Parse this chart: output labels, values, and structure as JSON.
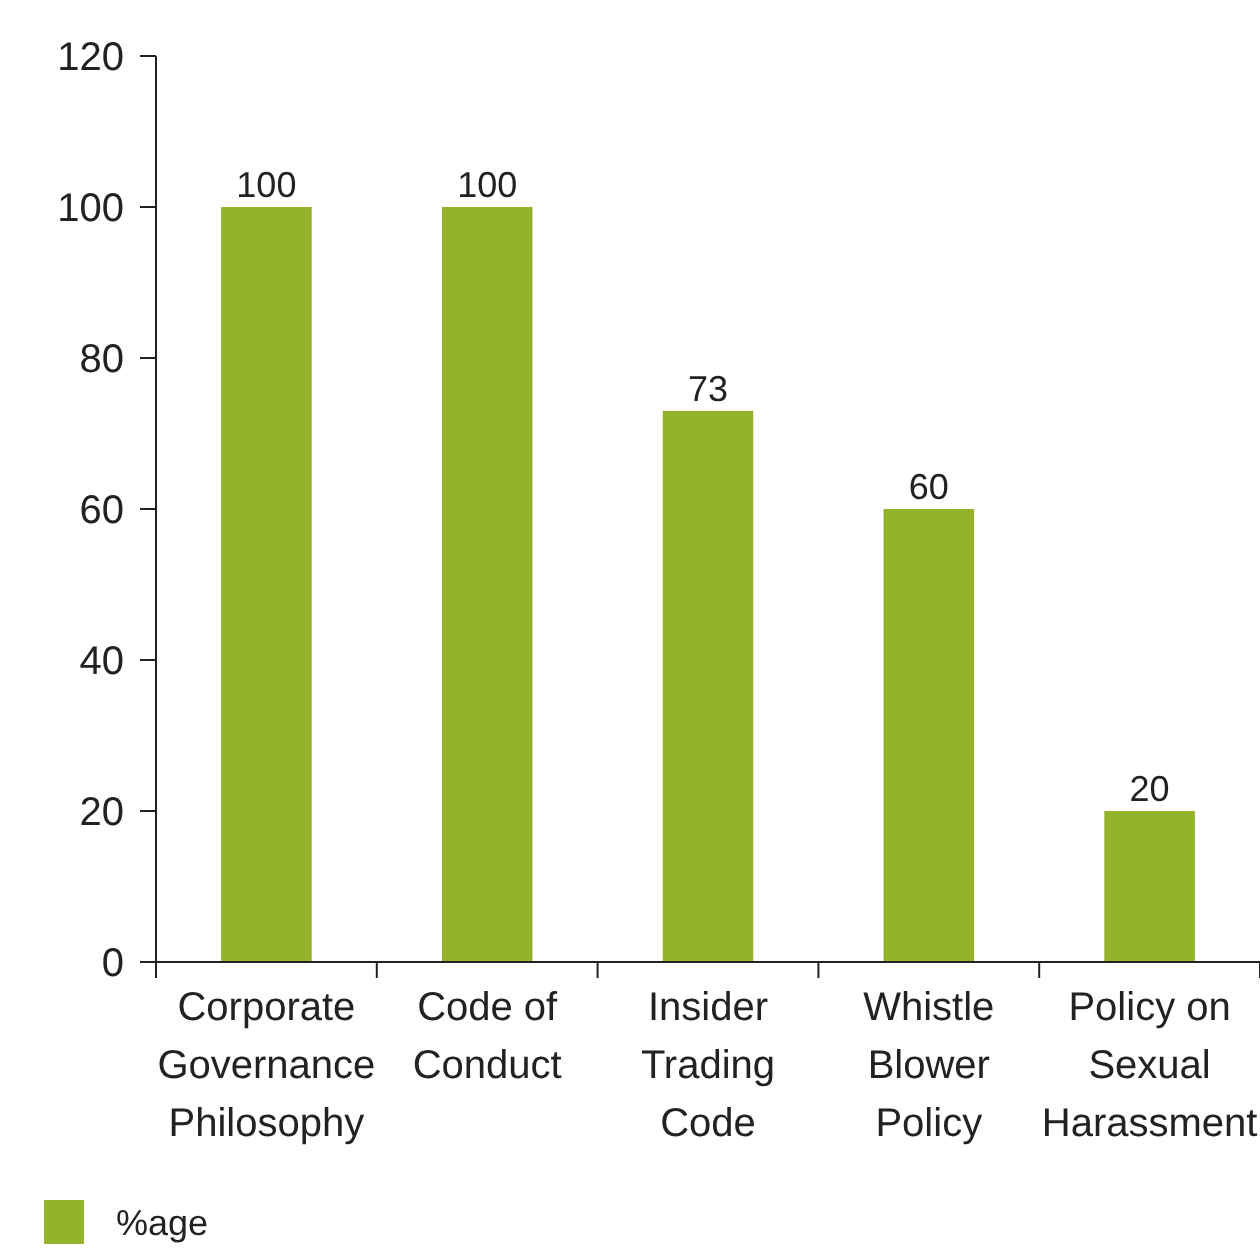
{
  "chart_data": {
    "type": "bar",
    "categories": [
      "Corporate Governance Philosophy",
      "Code of Conduct",
      "Insider Trading Code",
      "Whistle Blower Policy",
      "Policy on Sexual Harassment"
    ],
    "series": [
      {
        "name": "%age",
        "color": "#95b22b",
        "values": [
          100,
          100,
          73,
          60,
          20
        ]
      }
    ],
    "ylim": [
      0,
      120
    ],
    "yticks": [
      0,
      20,
      40,
      60,
      80,
      100,
      120
    ],
    "data_labels": true,
    "grid": false,
    "legend": "bottom left"
  }
}
